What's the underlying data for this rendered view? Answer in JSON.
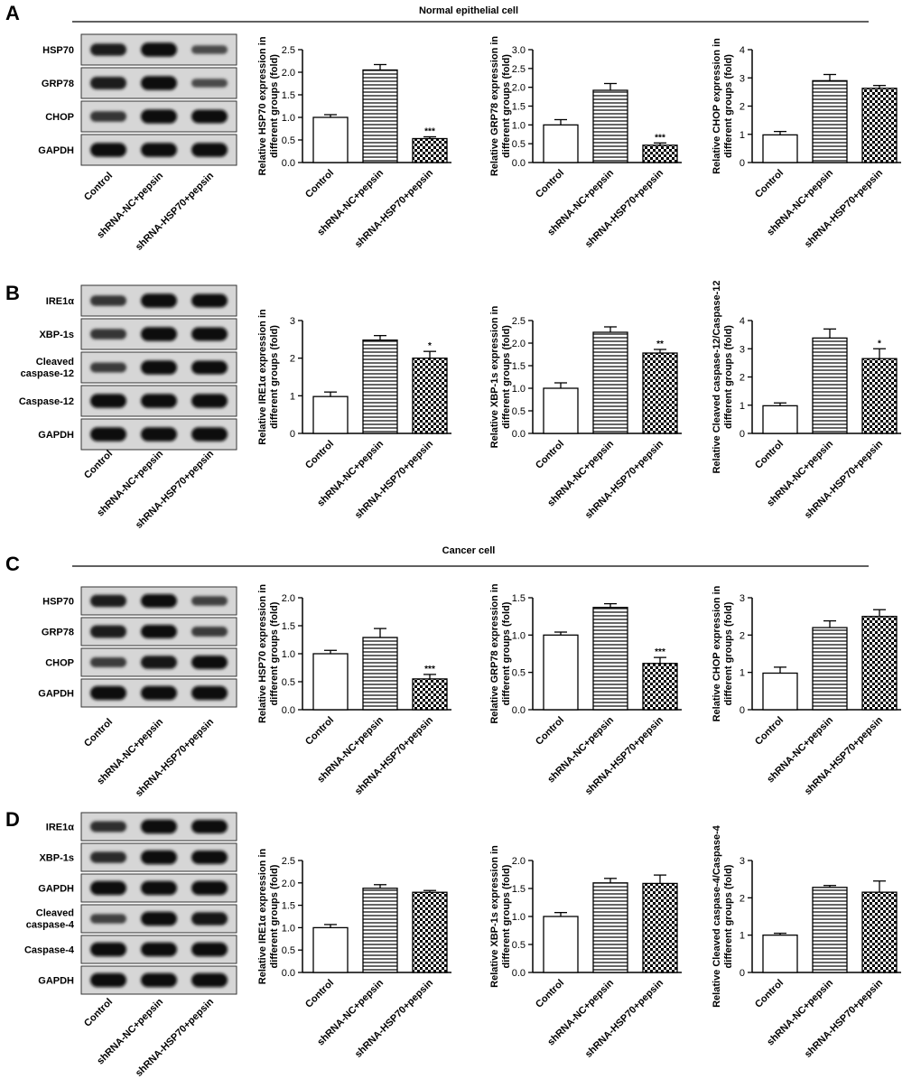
{
  "panels": [
    {
      "letter": "A",
      "header": "Normal epithelial cell"
    },
    {
      "letter": "B",
      "header": ""
    },
    {
      "letter": "C",
      "header": "Cancer cell"
    },
    {
      "letter": "D",
      "header": ""
    }
  ],
  "groups": [
    "Control",
    "shRNA-NC+pepsin",
    "shRNA-HSP70+pepsin"
  ],
  "blots": [
    {
      "rows": [
        {
          "label": "HSP70",
          "intensity": [
            0.75,
            0.95,
            0.35
          ]
        },
        {
          "label": "GRP78",
          "intensity": [
            0.8,
            0.95,
            0.35
          ]
        },
        {
          "label": "CHOP",
          "intensity": [
            0.55,
            0.95,
            0.9
          ]
        },
        {
          "label": "GAPDH",
          "intensity": [
            0.95,
            0.95,
            0.95
          ]
        }
      ]
    },
    {
      "rows": [
        {
          "label": "IRE1α",
          "intensity": [
            0.55,
            0.95,
            0.9
          ]
        },
        {
          "label": "XBP-1s",
          "intensity": [
            0.55,
            0.95,
            0.9
          ]
        },
        {
          "label": [
            "Cleaved",
            "caspase-12"
          ],
          "intensity": [
            0.5,
            0.95,
            0.9
          ]
        },
        {
          "label": "Caspase-12",
          "intensity": [
            0.95,
            0.95,
            0.95
          ]
        },
        {
          "label": "GAPDH",
          "intensity": [
            0.95,
            0.95,
            0.95
          ]
        }
      ]
    },
    {
      "rows": [
        {
          "label": "HSP70",
          "intensity": [
            0.75,
            0.9,
            0.45
          ]
        },
        {
          "label": "GRP78",
          "intensity": [
            0.8,
            0.9,
            0.5
          ]
        },
        {
          "label": "CHOP",
          "intensity": [
            0.5,
            0.85,
            0.9
          ]
        },
        {
          "label": "GAPDH",
          "intensity": [
            0.95,
            0.95,
            0.95
          ]
        }
      ]
    },
    {
      "rows": [
        {
          "label": "IRE1α",
          "intensity": [
            0.6,
            0.95,
            0.9
          ]
        },
        {
          "label": "XBP-1s",
          "intensity": [
            0.65,
            0.95,
            0.9
          ]
        },
        {
          "label": "GAPDH",
          "intensity": [
            0.95,
            0.95,
            0.95
          ]
        },
        {
          "label": [
            "Cleaved",
            "caspase-4"
          ],
          "intensity": [
            0.45,
            0.95,
            0.85
          ]
        },
        {
          "label": "Caspase-4",
          "intensity": [
            0.95,
            0.95,
            0.95
          ]
        },
        {
          "label": "GAPDH",
          "intensity": [
            0.95,
            0.95,
            0.95
          ]
        }
      ]
    }
  ],
  "chart_data": [
    {
      "type": "bar",
      "panel": "A",
      "ylabel": [
        "Relative HSP70 expression in",
        "different groups (fold)"
      ],
      "ylim": [
        0,
        2.5
      ],
      "ticks": [
        "0.0",
        "0.5",
        "1.0",
        "1.5",
        "2.0",
        "2.5"
      ],
      "categories": [
        "Control",
        "shRNA-NC+pepsin",
        "shRNA-HSP70+pepsin"
      ],
      "values": [
        1.0,
        2.05,
        0.53
      ],
      "errors": [
        0.06,
        0.12,
        0.04
      ],
      "sig": [
        "",
        "",
        "***"
      ]
    },
    {
      "type": "bar",
      "panel": "A",
      "ylabel": [
        "Relative GRP78 expression in",
        "different groups (fold)"
      ],
      "ylim": [
        0,
        3.0
      ],
      "ticks": [
        "0.0",
        "0.5",
        "1.0",
        "1.5",
        "2.0",
        "2.5",
        "3.0"
      ],
      "categories": [
        "Control",
        "shRNA-NC+pepsin",
        "shRNA-HSP70+pepsin"
      ],
      "values": [
        1.0,
        1.92,
        0.46
      ],
      "errors": [
        0.14,
        0.18,
        0.06
      ],
      "sig": [
        "",
        "",
        "***"
      ]
    },
    {
      "type": "bar",
      "panel": "A",
      "ylabel": [
        "Relative CHOP expression in",
        "different groups (fold)"
      ],
      "ylim": [
        0,
        4
      ],
      "ticks": [
        "0",
        "1",
        "2",
        "3",
        "4"
      ],
      "categories": [
        "Control",
        "shRNA-NC+pepsin",
        "shRNA-HSP70+pepsin"
      ],
      "values": [
        0.98,
        2.9,
        2.63
      ],
      "errors": [
        0.12,
        0.22,
        0.1
      ],
      "sig": [
        "",
        "",
        ""
      ]
    },
    {
      "type": "bar",
      "panel": "B",
      "ylabel": [
        "Relative IRE1α expression in",
        "different groups (fold)"
      ],
      "ylim": [
        0,
        3
      ],
      "ticks": [
        "0",
        "1",
        "2",
        "3"
      ],
      "categories": [
        "Control",
        "shRNA-NC+pepsin",
        "shRNA-HSP70+pepsin"
      ],
      "values": [
        0.98,
        2.48,
        2.0
      ],
      "errors": [
        0.12,
        0.12,
        0.18
      ],
      "sig": [
        "",
        "",
        "*"
      ]
    },
    {
      "type": "bar",
      "panel": "B",
      "ylabel": [
        "Relative XBP-1s expression in",
        "different groups (fold)"
      ],
      "ylim": [
        0,
        2.5
      ],
      "ticks": [
        "0.0",
        "0.5",
        "1.0",
        "1.5",
        "2.0",
        "2.5"
      ],
      "categories": [
        "Control",
        "shRNA-NC+pepsin",
        "shRNA-HSP70+pepsin"
      ],
      "values": [
        1.0,
        2.24,
        1.78
      ],
      "errors": [
        0.12,
        0.12,
        0.08
      ],
      "sig": [
        "",
        "",
        "**"
      ]
    },
    {
      "type": "bar",
      "panel": "B",
      "ylabel": [
        "Relative Cleaved caspase-12/Caspase-12",
        "different groups (fold)"
      ],
      "ylim": [
        0,
        4
      ],
      "ticks": [
        "0",
        "1",
        "2",
        "3",
        "4"
      ],
      "categories": [
        "Control",
        "shRNA-NC+pepsin",
        "shRNA-HSP70+pepsin"
      ],
      "values": [
        0.98,
        3.38,
        2.65
      ],
      "errors": [
        0.1,
        0.32,
        0.35
      ],
      "sig": [
        "",
        "",
        "*"
      ]
    },
    {
      "type": "bar",
      "panel": "C",
      "ylabel": [
        "Relative HSP70 expression in",
        "different groups (fold)"
      ],
      "ylim": [
        0,
        2.0
      ],
      "ticks": [
        "0.0",
        "0.5",
        "1.0",
        "1.5",
        "2.0"
      ],
      "categories": [
        "Control",
        "shRNA-NC+pepsin",
        "shRNA-HSP70+pepsin"
      ],
      "values": [
        1.0,
        1.29,
        0.55
      ],
      "errors": [
        0.06,
        0.16,
        0.08
      ],
      "sig": [
        "",
        "",
        "***"
      ]
    },
    {
      "type": "bar",
      "panel": "C",
      "ylabel": [
        "Relative GRP78 expression in",
        "different groups (fold)"
      ],
      "ylim": [
        0,
        1.5
      ],
      "ticks": [
        "0.0",
        "0.5",
        "1.0",
        "1.5"
      ],
      "categories": [
        "Control",
        "shRNA-NC+pepsin",
        "shRNA-HSP70+pepsin"
      ],
      "values": [
        1.0,
        1.37,
        0.62
      ],
      "errors": [
        0.04,
        0.05,
        0.08
      ],
      "sig": [
        "",
        "",
        "***"
      ]
    },
    {
      "type": "bar",
      "panel": "C",
      "ylabel": [
        "Relative CHOP expression in",
        "different groups (fold)"
      ],
      "ylim": [
        0,
        3
      ],
      "ticks": [
        "0",
        "1",
        "2",
        "3"
      ],
      "categories": [
        "Control",
        "shRNA-NC+pepsin",
        "shRNA-HSP70+pepsin"
      ],
      "values": [
        0.98,
        2.2,
        2.5
      ],
      "errors": [
        0.16,
        0.18,
        0.18
      ],
      "sig": [
        "",
        "",
        ""
      ]
    },
    {
      "type": "bar",
      "panel": "D",
      "ylabel": [
        "Relative IRE1α expression in",
        "different groups (fold)"
      ],
      "ylim": [
        0,
        2.5
      ],
      "ticks": [
        "0.0",
        "0.5",
        "1.0",
        "1.5",
        "2.0",
        "2.5"
      ],
      "categories": [
        "Control",
        "shRNA-NC+pepsin",
        "shRNA-HSP70+pepsin"
      ],
      "values": [
        1.0,
        1.88,
        1.79
      ],
      "errors": [
        0.07,
        0.08,
        0.04
      ],
      "sig": [
        "",
        "",
        ""
      ]
    },
    {
      "type": "bar",
      "panel": "D",
      "ylabel": [
        "Relative XBP-1s expression in",
        "different groups (fold)"
      ],
      "ylim": [
        0,
        2.0
      ],
      "ticks": [
        "0.0",
        "0.5",
        "1.0",
        "1.5",
        "2.0"
      ],
      "categories": [
        "Control",
        "shRNA-NC+pepsin",
        "shRNA-HSP70+pepsin"
      ],
      "values": [
        1.0,
        1.6,
        1.59
      ],
      "errors": [
        0.07,
        0.08,
        0.15
      ],
      "sig": [
        "",
        "",
        ""
      ]
    },
    {
      "type": "bar",
      "panel": "D",
      "ylabel": [
        "Relative Cleaved caspase-4/Caspase-4",
        "different groups (fold)"
      ],
      "ylim": [
        0,
        3
      ],
      "ticks": [
        "0",
        "1",
        "2",
        "3"
      ],
      "categories": [
        "Control",
        "shRNA-NC+pepsin",
        "shRNA-HSP70+pepsin"
      ],
      "values": [
        1.0,
        2.28,
        2.15
      ],
      "errors": [
        0.05,
        0.05,
        0.3
      ],
      "sig": [
        "",
        "",
        ""
      ]
    }
  ]
}
